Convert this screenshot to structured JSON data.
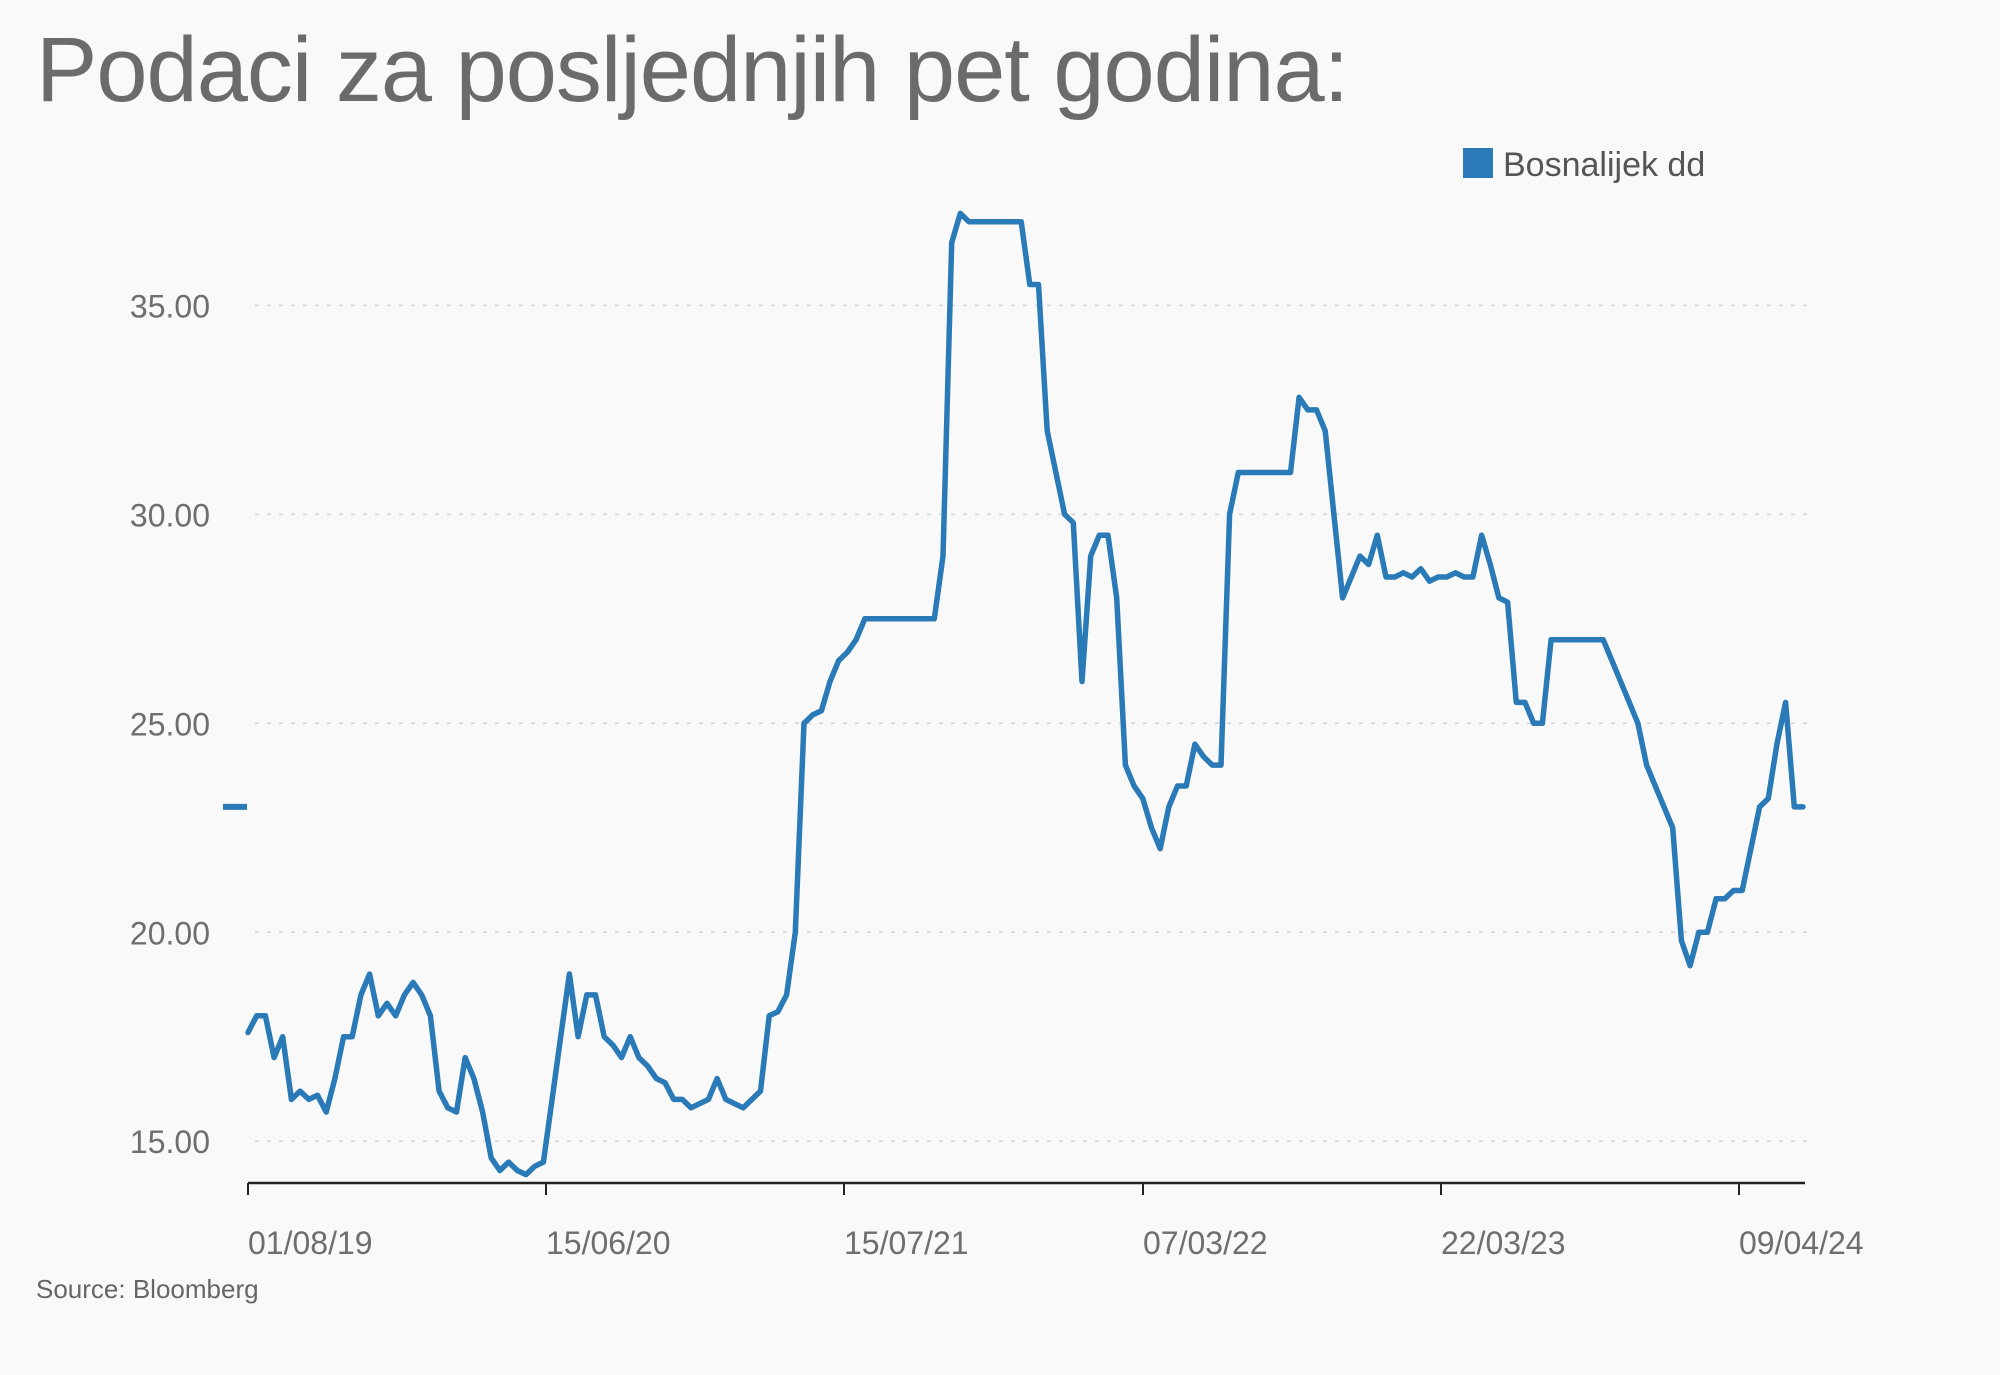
{
  "title": "Podaci za posljednjih pet godina:",
  "source": "Source: Bloomberg",
  "chart_data": {
    "type": "line",
    "title": "Podaci za posljednjih pet godina:",
    "xlabel": "",
    "ylabel": "",
    "ylim": [
      14.0,
      38.0
    ],
    "yticks": [
      15,
      20,
      25,
      30,
      35
    ],
    "ytick_labels": [
      "15.00",
      "20.00",
      "25.00",
      "30.00",
      "35.00"
    ],
    "xtick_labels": [
      "01/08/19",
      "15/06/20",
      "15/07/21",
      "07/03/22",
      "22/03/23",
      "09/04/24"
    ],
    "grid": true,
    "legend_position": "top-right",
    "color": "#2a7ab8",
    "start_marker_value": 23.0,
    "series": [
      {
        "name": "Bosnalijek dd",
        "values": [
          17.6,
          18.0,
          18.0,
          17.0,
          17.5,
          16.0,
          16.2,
          16.0,
          16.1,
          15.7,
          16.5,
          17.5,
          17.5,
          18.5,
          19.0,
          18.0,
          18.3,
          18.0,
          18.5,
          18.8,
          18.5,
          18.0,
          16.2,
          15.8,
          15.7,
          17.0,
          16.5,
          15.7,
          14.6,
          14.3,
          14.5,
          14.3,
          14.2,
          14.4,
          14.5,
          16.0,
          17.5,
          19.0,
          17.5,
          18.5,
          18.5,
          17.5,
          17.3,
          17.0,
          17.5,
          17.0,
          16.8,
          16.5,
          16.4,
          16.0,
          16.0,
          15.8,
          15.9,
          16.0,
          16.5,
          16.0,
          15.9,
          15.8,
          16.0,
          16.2,
          18.0,
          18.1,
          18.5,
          20.0,
          25.0,
          25.2,
          25.3,
          26.0,
          26.5,
          26.7,
          27.0,
          27.5,
          27.5,
          27.5,
          27.5,
          27.5,
          27.5,
          27.5,
          27.5,
          27.5,
          29.0,
          36.5,
          37.2,
          37.0,
          37.0,
          37.0,
          37.0,
          37.0,
          37.0,
          37.0,
          35.5,
          35.5,
          32.0,
          31.0,
          30.0,
          29.8,
          26.0,
          29.0,
          29.5,
          29.5,
          28.0,
          24.0,
          23.5,
          23.2,
          22.5,
          22.0,
          23.0,
          23.5,
          23.5,
          24.5,
          24.2,
          24.0,
          24.0,
          30.0,
          31.0,
          31.0,
          31.0,
          31.0,
          31.0,
          31.0,
          31.0,
          32.8,
          32.5,
          32.5,
          32.0,
          30.0,
          28.0,
          28.5,
          29.0,
          28.8,
          29.5,
          28.5,
          28.5,
          28.6,
          28.5,
          28.7,
          28.4,
          28.5,
          28.5,
          28.6,
          28.5,
          28.5,
          29.5,
          28.8,
          28.0,
          27.9,
          25.5,
          25.5,
          25.0,
          25.0,
          27.0,
          27.0,
          27.0,
          27.0,
          27.0,
          27.0,
          27.0,
          26.5,
          26.0,
          25.5,
          25.0,
          24.0,
          23.5,
          23.0,
          22.5,
          19.8,
          19.2,
          20.0,
          20.0,
          20.8,
          20.8,
          21.0,
          21.0,
          22.0,
          23.0,
          23.2,
          24.5,
          25.5,
          23.0,
          23.0
        ]
      }
    ]
  }
}
